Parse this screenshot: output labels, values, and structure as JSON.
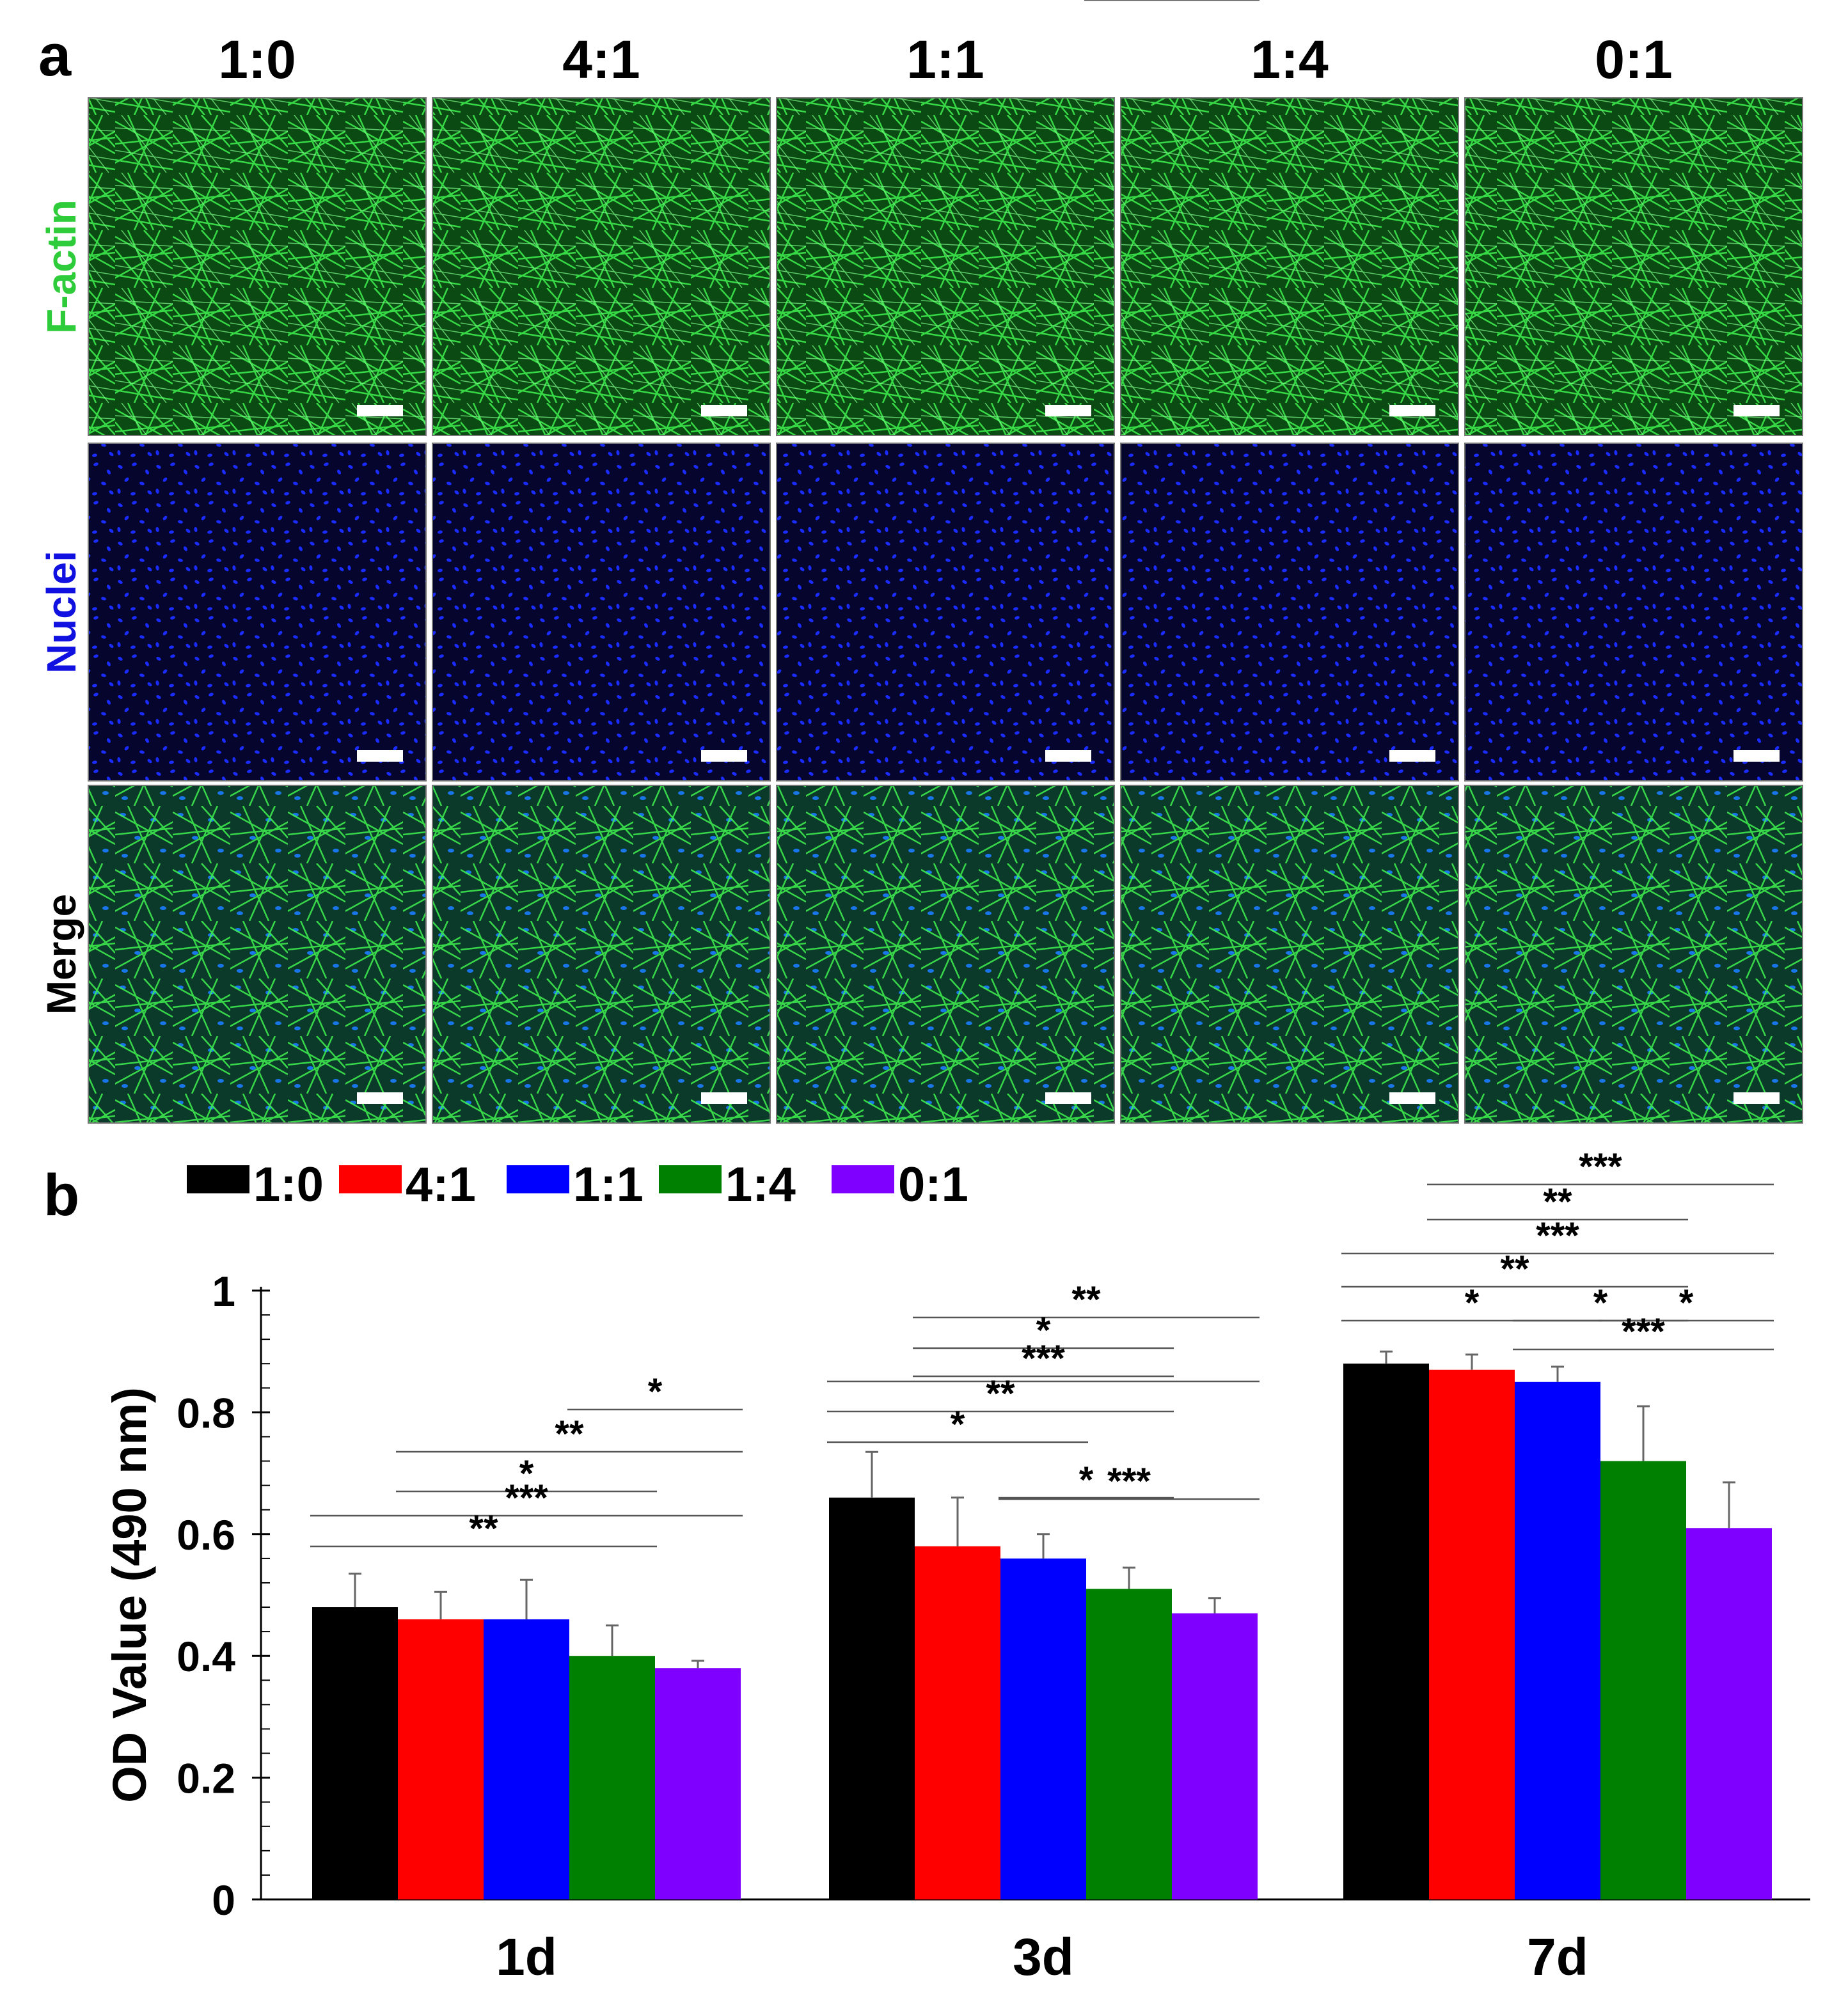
{
  "panel_a": {
    "label": "a",
    "column_titles": [
      "1:0",
      "4:1",
      "1:1",
      "1:4",
      "0:1"
    ],
    "row_labels": [
      {
        "text": "F-actin",
        "color": "#2ecc3a",
        "stain": "factin"
      },
      {
        "text": "Nuclei",
        "color": "#1010e0",
        "stain": "nuclei"
      },
      {
        "text": "Merge",
        "color": "#000000",
        "stain": "merge"
      }
    ]
  },
  "chart_data": {
    "type": "bar",
    "panel_label": "b",
    "categories": [
      "1d",
      "3d",
      "7d"
    ],
    "ylabel": "OD Value (490 nm)",
    "xlabel": "",
    "ylim": [
      0,
      1
    ],
    "y_ticks": [
      "0",
      "0.2",
      "0.4",
      "0.6",
      "0.8",
      "1"
    ],
    "y_tick_values": [
      0,
      0.2,
      0.4,
      0.6,
      0.8,
      1.0
    ],
    "legend_position": "top",
    "series": [
      {
        "name": "1:0",
        "color": "#000000",
        "values": [
          0.48,
          0.66,
          0.88
        ],
        "errors": [
          0.055,
          0.075,
          0.02
        ]
      },
      {
        "name": "4:1",
        "color": "#ff0000",
        "values": [
          0.46,
          0.58,
          0.87
        ],
        "errors": [
          0.045,
          0.08,
          0.025
        ]
      },
      {
        "name": "1:1",
        "color": "#0000ff",
        "values": [
          0.46,
          0.56,
          0.85
        ],
        "errors": [
          0.065,
          0.04,
          0.025
        ]
      },
      {
        "name": "1:4",
        "color": "#008000",
        "values": [
          0.4,
          0.51,
          0.72
        ],
        "errors": [
          0.05,
          0.035,
          0.09
        ]
      },
      {
        "name": "0:1",
        "color": "#8000ff",
        "values": [
          0.38,
          0.47,
          0.61
        ],
        "errors": [
          0.012,
          0.025,
          0.075
        ]
      }
    ],
    "significance": [
      {
        "group": 0,
        "from": 3,
        "to": 4,
        "label": "*"
      },
      {
        "group": 0,
        "from": 1,
        "to": 4,
        "label": "**"
      },
      {
        "group": 0,
        "from": 1,
        "to": 3,
        "label": "*"
      },
      {
        "group": 0,
        "from": 0,
        "to": 4,
        "label": "***"
      },
      {
        "group": 0,
        "from": 0,
        "to": 3,
        "label": "**"
      },
      {
        "group": 1,
        "from": 1,
        "to": 4,
        "label": "**"
      },
      {
        "group": 1,
        "from": 1,
        "to": 3,
        "label": "*"
      },
      {
        "group": 1,
        "from": 1,
        "to": 3,
        "label": "***"
      },
      {
        "group": 1,
        "from": 0,
        "to": 4,
        "label": ""
      },
      {
        "group": 1,
        "from": 0,
        "to": 3,
        "label": "**"
      },
      {
        "group": 1,
        "from": 0,
        "to": 2,
        "label": "*"
      },
      {
        "group": 1,
        "from": 2,
        "to": 4,
        "label": "***"
      },
      {
        "group": 1,
        "from": 2,
        "to": 3,
        "label": "*"
      },
      {
        "group": 1,
        "from": 3,
        "to": 4,
        "label": "*"
      },
      {
        "group": 2,
        "from": 1,
        "to": 4,
        "label": "***"
      },
      {
        "group": 2,
        "from": 1,
        "to": 3,
        "label": "**"
      },
      {
        "group": 2,
        "from": 0,
        "to": 4,
        "label": "***"
      },
      {
        "group": 2,
        "from": 0,
        "to": 3,
        "label": "**"
      },
      {
        "group": 2,
        "from": 0,
        "to": 2,
        "label": "*"
      },
      {
        "group": 2,
        "from": 2,
        "to": 3,
        "label": "*"
      },
      {
        "group": 2,
        "from": 3,
        "to": 4,
        "label": "*"
      },
      {
        "group": 2,
        "from": 2,
        "to": 4,
        "label": "***"
      }
    ]
  }
}
